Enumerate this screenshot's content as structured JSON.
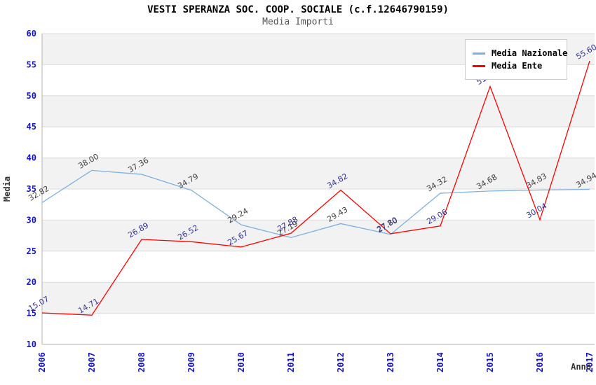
{
  "chart_data": {
    "type": "line",
    "title": "VESTI SPERANZA SOC. COOP. SOCIALE (c.f.12646790159)",
    "subtitle": "Media Importi",
    "categories": [
      "2006",
      "2007",
      "2008",
      "2009",
      "2010",
      "2011",
      "2012",
      "2013",
      "2014",
      "2015",
      "2016",
      "2017"
    ],
    "series": [
      {
        "name": "Media Nazionale",
        "color": "#7cb0e2",
        "label_color": "#404040",
        "values": [
          32.82,
          38.0,
          37.36,
          34.79,
          29.24,
          27.19,
          29.43,
          27.7,
          34.32,
          34.68,
          34.83,
          34.94
        ]
      },
      {
        "name": "Media Ente",
        "color": "#ff0000",
        "label_color": "#333399",
        "values": [
          15.07,
          14.71,
          26.89,
          26.52,
          25.67,
          27.88,
          34.82,
          27.8,
          29.06,
          51.5,
          30.04,
          55.6
        ]
      }
    ],
    "xlabel": "Anno",
    "ylabel": "Media",
    "ylim": [
      10,
      60
    ],
    "ytick_step": 5,
    "grid": true,
    "legend_position": "top-right",
    "band_colors": [
      "#f2f2f2",
      "#ffffff"
    ],
    "gridline_color": "#dcdcdc",
    "axis_line_color": "#b3b3b3",
    "tick_label_color": "#1515cc"
  }
}
